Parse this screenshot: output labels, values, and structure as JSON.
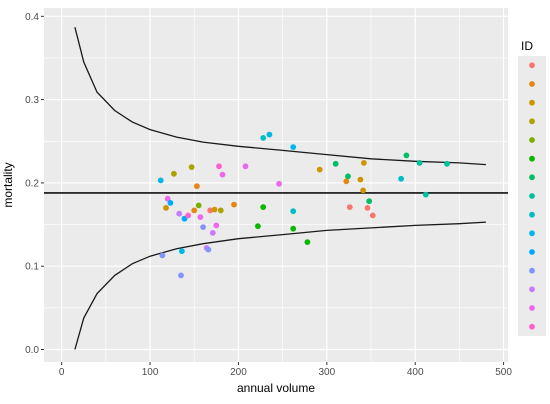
{
  "chart_data": {
    "type": "scatter",
    "title": "",
    "xlabel": "annual volume",
    "ylabel": "mortality",
    "xlim": [
      -20,
      505
    ],
    "ylim": [
      -0.015,
      0.41
    ],
    "xticks": [
      0,
      100,
      200,
      300,
      400,
      500
    ],
    "xtick_labels": [
      "0",
      "100",
      "200",
      "300",
      "400",
      "500"
    ],
    "yticks": [
      0.0,
      0.1,
      0.2,
      0.3,
      0.4
    ],
    "ytick_labels": [
      "0.0",
      "0.1",
      "0.2",
      "0.3",
      "0.4"
    ],
    "grid": true,
    "background": "#ebebeb",
    "legend": {
      "title": "ID",
      "placement": "right",
      "colors": [
        "#f8766d",
        "#e68613",
        "#cd9600",
        "#aba300",
        "#7cae00",
        "#0cb702",
        "#00be67",
        "#00c19a",
        "#00bfc4",
        "#00b8e7",
        "#00a9ff",
        "#8494ff",
        "#c77cff",
        "#ed68ed",
        "#ff61cc"
      ]
    },
    "reference_line": 0.188,
    "funnel_curves": {
      "x_start": 15,
      "x_end": 480,
      "upper": [
        [
          15,
          0.387
        ],
        [
          25,
          0.345
        ],
        [
          40,
          0.309
        ],
        [
          60,
          0.287
        ],
        [
          80,
          0.273
        ],
        [
          100,
          0.264
        ],
        [
          130,
          0.255
        ],
        [
          160,
          0.249
        ],
        [
          200,
          0.244
        ],
        [
          250,
          0.239
        ],
        [
          300,
          0.234
        ],
        [
          350,
          0.229
        ],
        [
          400,
          0.226
        ],
        [
          450,
          0.224
        ],
        [
          480,
          0.222
        ]
      ],
      "lower": [
        [
          15,
          0.0
        ],
        [
          25,
          0.038
        ],
        [
          40,
          0.067
        ],
        [
          60,
          0.089
        ],
        [
          80,
          0.103
        ],
        [
          100,
          0.112
        ],
        [
          130,
          0.121
        ],
        [
          160,
          0.127
        ],
        [
          200,
          0.133
        ],
        [
          250,
          0.138
        ],
        [
          300,
          0.143
        ],
        [
          350,
          0.146
        ],
        [
          400,
          0.149
        ],
        [
          450,
          0.151
        ],
        [
          480,
          0.153
        ]
      ]
    },
    "points": [
      {
        "x": 112,
        "y": 0.203,
        "color": "#00b8e7"
      },
      {
        "x": 114,
        "y": 0.113,
        "color": "#8494ff"
      },
      {
        "x": 118,
        "y": 0.17,
        "color": "#cd9600"
      },
      {
        "x": 120,
        "y": 0.181,
        "color": "#ed68ed"
      },
      {
        "x": 123,
        "y": 0.176,
        "color": "#00a9ff"
      },
      {
        "x": 127,
        "y": 0.211,
        "color": "#aba300"
      },
      {
        "x": 135,
        "y": 0.089,
        "color": "#8494ff"
      },
      {
        "x": 133,
        "y": 0.163,
        "color": "#c77cff"
      },
      {
        "x": 136,
        "y": 0.118,
        "color": "#00b8e7"
      },
      {
        "x": 139,
        "y": 0.157,
        "color": "#00a9ff"
      },
      {
        "x": 143,
        "y": 0.161,
        "color": "#ff61cc"
      },
      {
        "x": 147,
        "y": 0.219,
        "color": "#aba300"
      },
      {
        "x": 150,
        "y": 0.167,
        "color": "#e68613"
      },
      {
        "x": 153,
        "y": 0.196,
        "color": "#e68613"
      },
      {
        "x": 155,
        "y": 0.173,
        "color": "#7cae00"
      },
      {
        "x": 157,
        "y": 0.159,
        "color": "#ed68ed"
      },
      {
        "x": 160,
        "y": 0.147,
        "color": "#8494ff"
      },
      {
        "x": 164,
        "y": 0.122,
        "color": "#c77cff"
      },
      {
        "x": 166,
        "y": 0.12,
        "color": "#8494ff"
      },
      {
        "x": 168,
        "y": 0.167,
        "color": "#f8766d"
      },
      {
        "x": 171,
        "y": 0.14,
        "color": "#c77cff"
      },
      {
        "x": 173,
        "y": 0.168,
        "color": "#cd9600"
      },
      {
        "x": 175,
        "y": 0.149,
        "color": "#ed68ed"
      },
      {
        "x": 178,
        "y": 0.22,
        "color": "#ff61cc"
      },
      {
        "x": 180,
        "y": 0.167,
        "color": "#aba300"
      },
      {
        "x": 182,
        "y": 0.21,
        "color": "#ed68ed"
      },
      {
        "x": 195,
        "y": 0.174,
        "color": "#e68613"
      },
      {
        "x": 208,
        "y": 0.22,
        "color": "#ed68ed"
      },
      {
        "x": 222,
        "y": 0.148,
        "color": "#0cb702"
      },
      {
        "x": 228,
        "y": 0.171,
        "color": "#0cb702"
      },
      {
        "x": 228,
        "y": 0.254,
        "color": "#00bfc4"
      },
      {
        "x": 235,
        "y": 0.258,
        "color": "#00b8e7"
      },
      {
        "x": 246,
        "y": 0.199,
        "color": "#ed68ed"
      },
      {
        "x": 262,
        "y": 0.243,
        "color": "#00b8e7"
      },
      {
        "x": 262,
        "y": 0.166,
        "color": "#00bfc4"
      },
      {
        "x": 262,
        "y": 0.145,
        "color": "#0cb702"
      },
      {
        "x": 278,
        "y": 0.129,
        "color": "#0cb702"
      },
      {
        "x": 292,
        "y": 0.216,
        "color": "#cd9600"
      },
      {
        "x": 310,
        "y": 0.223,
        "color": "#00be67"
      },
      {
        "x": 322,
        "y": 0.202,
        "color": "#e68613"
      },
      {
        "x": 324,
        "y": 0.208,
        "color": "#00be67"
      },
      {
        "x": 326,
        "y": 0.171,
        "color": "#f8766d"
      },
      {
        "x": 338,
        "y": 0.204,
        "color": "#cd9600"
      },
      {
        "x": 341,
        "y": 0.191,
        "color": "#cd9600"
      },
      {
        "x": 342,
        "y": 0.224,
        "color": "#cd9600"
      },
      {
        "x": 346,
        "y": 0.17,
        "color": "#f8766d"
      },
      {
        "x": 348,
        "y": 0.178,
        "color": "#00be67"
      },
      {
        "x": 352,
        "y": 0.161,
        "color": "#f8766d"
      },
      {
        "x": 384,
        "y": 0.205,
        "color": "#00bfc4"
      },
      {
        "x": 390,
        "y": 0.233,
        "color": "#00be67"
      },
      {
        "x": 405,
        "y": 0.224,
        "color": "#00c19a"
      },
      {
        "x": 412,
        "y": 0.186,
        "color": "#00c19a"
      },
      {
        "x": 436,
        "y": 0.223,
        "color": "#00c19a"
      }
    ]
  }
}
